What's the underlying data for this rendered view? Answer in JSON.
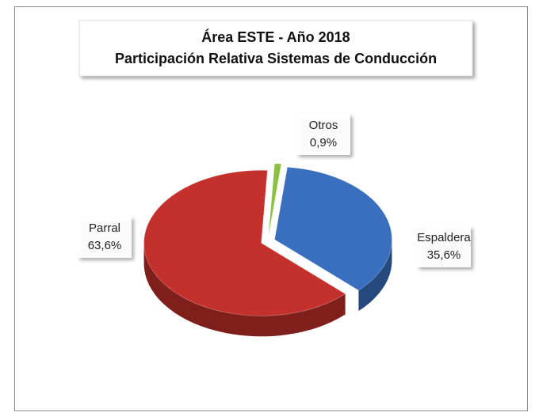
{
  "chart_data": {
    "type": "pie",
    "title": "Área ESTE -  Año 2018",
    "subtitle": "Participación Relativa Sistemas de Conducción",
    "categories": [
      "Otros",
      "Espaldera",
      "Parral"
    ],
    "values": [
      0.9,
      35.6,
      63.6
    ],
    "value_labels": [
      "0,9%",
      "35,6%",
      "63,6%"
    ],
    "colors": [
      "#8cc043",
      "#3a6fc0",
      "#c4302b"
    ]
  }
}
